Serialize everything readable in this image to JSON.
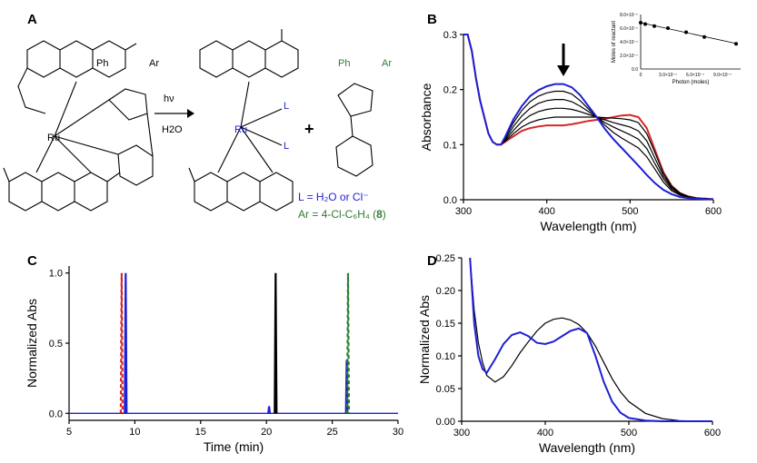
{
  "colors": {
    "red": "#d62728",
    "blue": "#1f1fd6",
    "black": "#000000",
    "green": "#2e7d32",
    "grey": "#444444"
  },
  "panels": {
    "a": {
      "label": "A",
      "reagent": "hν",
      "solvent": "H2O",
      "plus": "+",
      "ph_left": "Ph",
      "ar_left": "Ar",
      "ph_right": "Ph",
      "ar_right": "Ar",
      "ligand_L1": "L",
      "ligand_L2": "L",
      "ru_left": "Ru",
      "ru_right": "Ru",
      "legend_L_prefix": "L = ",
      "legend_L_text": "H₂O or Cl⁻",
      "legend_Ar_prefix": "Ar = ",
      "legend_Ar_text": "4-Cl-C₆H₄ (",
      "legend_Ar_num": "8",
      "legend_Ar_close": ")"
    },
    "b": {
      "label": "B"
    },
    "c": {
      "label": "C"
    },
    "d": {
      "label": "D"
    }
  },
  "chart_data": [
    {
      "id": "B",
      "type": "line",
      "xlabel": "Wavelength (nm)",
      "ylabel": "Absorbance",
      "xlim": [
        300,
        600
      ],
      "ylim": [
        0,
        0.3
      ],
      "xticks": [
        300,
        400,
        500,
        600
      ],
      "yticks": [
        0.0,
        0.1,
        0.2,
        0.3
      ],
      "ytick_labels": [
        "0.0",
        "0.1",
        "0.2",
        "0.3"
      ],
      "x": [
        300,
        305,
        310,
        315,
        320,
        325,
        330,
        335,
        340,
        345,
        350,
        360,
        370,
        380,
        390,
        400,
        410,
        420,
        430,
        440,
        450,
        460,
        470,
        480,
        490,
        500,
        510,
        520,
        530,
        540,
        550,
        560,
        570,
        580,
        590,
        600
      ],
      "series": [
        {
          "color": "red",
          "values": [
            0.36,
            0.31,
            0.27,
            0.22,
            0.18,
            0.15,
            0.12,
            0.105,
            0.1,
            0.1,
            0.105,
            0.115,
            0.125,
            0.13,
            0.133,
            0.135,
            0.135,
            0.135,
            0.137,
            0.14,
            0.143,
            0.145,
            0.147,
            0.15,
            0.153,
            0.154,
            0.15,
            0.13,
            0.09,
            0.05,
            0.025,
            0.012,
            0.006,
            0.003,
            0.002,
            0.001
          ]
        },
        {
          "color": "black",
          "values": [
            0.36,
            0.31,
            0.27,
            0.22,
            0.18,
            0.15,
            0.12,
            0.105,
            0.1,
            0.1,
            0.106,
            0.12,
            0.132,
            0.14,
            0.145,
            0.148,
            0.15,
            0.15,
            0.15,
            0.15,
            0.15,
            0.15,
            0.149,
            0.148,
            0.147,
            0.145,
            0.14,
            0.12,
            0.085,
            0.048,
            0.024,
            0.012,
            0.006,
            0.003,
            0.002,
            0.001
          ]
        },
        {
          "color": "black",
          "values": [
            0.36,
            0.31,
            0.27,
            0.22,
            0.18,
            0.15,
            0.12,
            0.105,
            0.1,
            0.1,
            0.108,
            0.126,
            0.142,
            0.153,
            0.16,
            0.164,
            0.166,
            0.166,
            0.164,
            0.16,
            0.155,
            0.15,
            0.145,
            0.14,
            0.136,
            0.132,
            0.125,
            0.107,
            0.075,
            0.043,
            0.022,
            0.011,
            0.005,
            0.003,
            0.002,
            0.001
          ]
        },
        {
          "color": "black",
          "values": [
            0.36,
            0.31,
            0.27,
            0.22,
            0.18,
            0.15,
            0.12,
            0.105,
            0.1,
            0.1,
            0.11,
            0.133,
            0.152,
            0.166,
            0.175,
            0.18,
            0.182,
            0.182,
            0.178,
            0.17,
            0.16,
            0.15,
            0.14,
            0.132,
            0.125,
            0.118,
            0.11,
            0.093,
            0.065,
            0.038,
            0.019,
            0.01,
            0.005,
            0.003,
            0.002,
            0.001
          ]
        },
        {
          "color": "black",
          "values": [
            0.36,
            0.31,
            0.27,
            0.22,
            0.18,
            0.15,
            0.12,
            0.105,
            0.1,
            0.1,
            0.112,
            0.14,
            0.162,
            0.178,
            0.188,
            0.194,
            0.197,
            0.197,
            0.192,
            0.18,
            0.165,
            0.15,
            0.135,
            0.122,
            0.112,
            0.103,
            0.094,
            0.078,
            0.055,
            0.032,
            0.016,
            0.008,
            0.004,
            0.002,
            0.001,
            0.001
          ]
        },
        {
          "color": "blue",
          "values": [
            0.36,
            0.31,
            0.27,
            0.22,
            0.18,
            0.15,
            0.12,
            0.105,
            0.1,
            0.1,
            0.114,
            0.146,
            0.17,
            0.188,
            0.199,
            0.206,
            0.21,
            0.21,
            0.204,
            0.19,
            0.17,
            0.15,
            0.128,
            0.11,
            0.094,
            0.078,
            0.062,
            0.045,
            0.03,
            0.018,
            0.01,
            0.005,
            0.003,
            0.002,
            0.001,
            0.001
          ]
        }
      ],
      "arrow_x": 420,
      "inset": {
        "type": "scatter",
        "xlabel": "Photon (moles)",
        "ylabel": "Moles of reactant",
        "xticks": [
          "0",
          "3.0×10⁻⁷",
          "6.0×10⁻⁷",
          "9.0×10⁻⁷"
        ],
        "yticks": [
          "0.0",
          "2.0×10⁻⁷",
          "4.0×10⁻⁷",
          "6.0×10⁻⁷",
          "8.0×10⁻⁷"
        ],
        "xlim": [
          0,
          1.1e-06
        ],
        "ylim": [
          0,
          8e-07
        ],
        "x": [
          0,
          5e-08,
          1.5e-07,
          3e-07,
          5e-07,
          7e-07,
          1.05e-06
        ],
        "y": [
          6.8e-07,
          6.6e-07,
          6.3e-07,
          6e-07,
          5.4e-07,
          4.7e-07,
          3.7e-07
        ],
        "fit": [
          [
            0,
            6.8e-07
          ],
          [
            1.05e-06,
            3.75e-07
          ]
        ]
      }
    },
    {
      "id": "C",
      "type": "line",
      "xlabel": "Time (min)",
      "ylabel": "Normalized Abs",
      "xlim": [
        5,
        30
      ],
      "ylim": [
        -0.05,
        1.05
      ],
      "xticks": [
        5,
        10,
        15,
        20,
        25,
        30
      ],
      "yticks": [
        0.0,
        0.5,
        1.0
      ],
      "ytick_labels": [
        "0.0",
        "0.5",
        "1.0"
      ],
      "peaks": [
        {
          "color": "red",
          "dashed": true,
          "center": 9.0,
          "height": 1.0,
          "width": 0.07
        },
        {
          "color": "blue",
          "dashed": false,
          "center": 9.3,
          "height": 1.0,
          "width": 0.07
        },
        {
          "color": "blue",
          "dashed": false,
          "center": 20.2,
          "height": 0.05,
          "width": 0.06
        },
        {
          "color": "black",
          "dashed": false,
          "center": 20.7,
          "height": 1.0,
          "width": 0.07
        },
        {
          "color": "blue",
          "dashed": false,
          "center": 26.1,
          "height": 0.38,
          "width": 0.06
        },
        {
          "color": "green",
          "dashed": true,
          "center": 26.2,
          "height": 1.0,
          "width": 0.07
        }
      ]
    },
    {
      "id": "D",
      "type": "line",
      "xlabel": "Wavelength (nm)",
      "ylabel": "Normalized Abs",
      "xlim": [
        300,
        600
      ],
      "ylim": [
        0,
        0.25
      ],
      "xticks": [
        300,
        400,
        500,
        600
      ],
      "yticks": [
        0.0,
        0.05,
        0.1,
        0.15,
        0.2,
        0.25
      ],
      "ytick_labels": [
        "0.00",
        "0.05",
        "0.10",
        "0.15",
        "0.20",
        "0.25"
      ],
      "x": [
        310,
        315,
        320,
        325,
        330,
        340,
        350,
        360,
        370,
        380,
        390,
        400,
        410,
        420,
        430,
        440,
        450,
        460,
        470,
        480,
        490,
        500,
        520,
        540,
        560,
        580,
        600
      ],
      "series": [
        {
          "color": "black",
          "values": [
            0.25,
            0.17,
            0.12,
            0.09,
            0.07,
            0.06,
            0.068,
            0.085,
            0.105,
            0.122,
            0.138,
            0.15,
            0.156,
            0.158,
            0.155,
            0.148,
            0.135,
            0.115,
            0.09,
            0.065,
            0.045,
            0.03,
            0.012,
            0.004,
            0.001,
            0.0,
            0.0
          ]
        },
        {
          "color": "blue",
          "values": [
            0.25,
            0.15,
            0.1,
            0.08,
            0.074,
            0.095,
            0.118,
            0.132,
            0.136,
            0.13,
            0.12,
            0.118,
            0.122,
            0.13,
            0.138,
            0.142,
            0.135,
            0.1,
            0.06,
            0.03,
            0.013,
            0.005,
            0.001,
            0.0,
            0.0,
            0.0,
            0.0
          ]
        }
      ]
    }
  ]
}
